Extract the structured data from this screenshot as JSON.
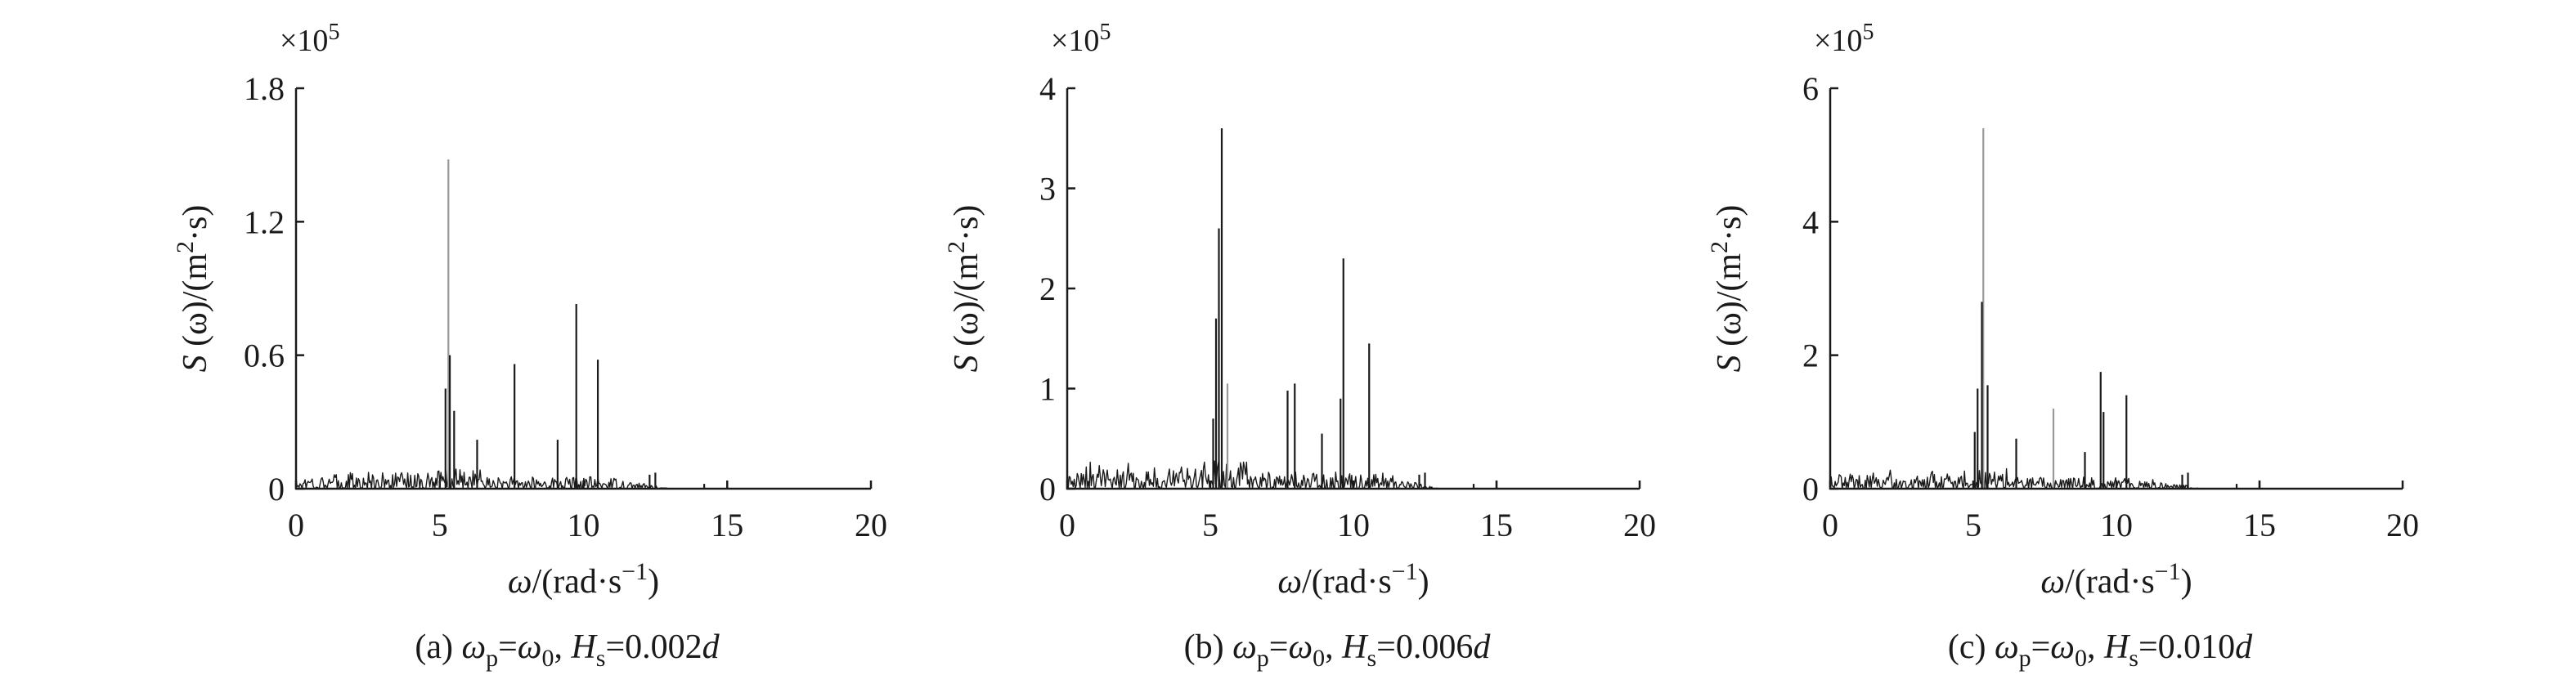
{
  "chart_data": [
    {
      "type": "line",
      "caption": {
        "prefix": "(a) ",
        "omega_p": "ω",
        "sub_p": "p",
        "eq": "=",
        "omega_0": "ω",
        "sub_0": "0",
        "sep": ", ",
        "H": "H",
        "sub_s": "s",
        "eq2": "=0.002",
        "d": "d"
      },
      "xlabel": {
        "omega": "ω",
        "rest": "/(rad·s",
        "sup": "−1",
        "close": ")"
      },
      "ylabel": {
        "S": "S",
        "mid": " (ω)/(m",
        "sup": "2",
        "end": "·s)"
      },
      "multiplier": {
        "text": "×10",
        "exp": "5"
      },
      "xlim": [
        0,
        20
      ],
      "ylim": [
        0,
        1.8
      ],
      "xticks": [
        "0",
        "5",
        "10",
        "15",
        "20"
      ],
      "yticks": [
        "0",
        "0.6",
        "1.2",
        "1.8"
      ],
      "ytick_values": [
        0,
        0.6,
        1.2,
        1.8
      ],
      "noise_level": 0.09,
      "peaks": [
        {
          "x": 5.3,
          "y": 1.48,
          "color": "#999999"
        },
        {
          "x": 5.35,
          "y": 0.6,
          "color": "#1a1a1a"
        },
        {
          "x": 5.2,
          "y": 0.45,
          "color": "#1a1a1a"
        },
        {
          "x": 5.5,
          "y": 0.35,
          "color": "#1a1a1a"
        },
        {
          "x": 6.3,
          "y": 0.22,
          "color": "#1a1a1a"
        },
        {
          "x": 7.6,
          "y": 0.56,
          "color": "#1a1a1a"
        },
        {
          "x": 9.1,
          "y": 0.22,
          "color": "#1a1a1a"
        },
        {
          "x": 9.75,
          "y": 0.83,
          "color": "#1a1a1a"
        },
        {
          "x": 10.5,
          "y": 0.58,
          "color": "#1a1a1a"
        }
      ]
    },
    {
      "type": "line",
      "caption": {
        "prefix": "(b) ",
        "omega_p": "ω",
        "sub_p": "p",
        "eq": "=",
        "omega_0": "ω",
        "sub_0": "0",
        "sep": ", ",
        "H": "H",
        "sub_s": "s",
        "eq2": "=0.006",
        "d": "d"
      },
      "xlabel": {
        "omega": "ω",
        "rest": "/(rad·s",
        "sup": "−1",
        "close": ")"
      },
      "ylabel": {
        "S": "S",
        "mid": " (ω)/(m",
        "sup": "2",
        "end": "·s)"
      },
      "multiplier": {
        "text": "×10",
        "exp": "5"
      },
      "xlim": [
        0,
        20
      ],
      "ylim": [
        0,
        4
      ],
      "xticks": [
        "0",
        "5",
        "10",
        "15",
        "20"
      ],
      "yticks": [
        "0",
        "1",
        "2",
        "3",
        "4"
      ],
      "ytick_values": [
        0,
        1,
        2,
        3,
        4
      ],
      "noise_level": 0.28,
      "peaks": [
        {
          "x": 5.4,
          "y": 3.6,
          "color": "#1a1a1a"
        },
        {
          "x": 5.3,
          "y": 2.6,
          "color": "#1a1a1a"
        },
        {
          "x": 5.2,
          "y": 1.7,
          "color": "#1a1a1a"
        },
        {
          "x": 5.6,
          "y": 1.05,
          "color": "#999999"
        },
        {
          "x": 5.1,
          "y": 0.7,
          "color": "#1a1a1a"
        },
        {
          "x": 7.7,
          "y": 0.98,
          "color": "#1a1a1a"
        },
        {
          "x": 7.95,
          "y": 1.05,
          "color": "#1a1a1a"
        },
        {
          "x": 8.9,
          "y": 0.55,
          "color": "#1a1a1a"
        },
        {
          "x": 9.65,
          "y": 2.3,
          "color": "#1a1a1a"
        },
        {
          "x": 9.55,
          "y": 0.9,
          "color": "#1a1a1a"
        },
        {
          "x": 10.55,
          "y": 1.45,
          "color": "#1a1a1a"
        }
      ]
    },
    {
      "type": "line",
      "caption": {
        "prefix": "(c) ",
        "omega_p": "ω",
        "sub_p": "p",
        "eq": "=",
        "omega_0": "ω",
        "sub_0": "0",
        "sep": ", ",
        "H": "H",
        "sub_s": "s",
        "eq2": "=0.010",
        "d": "d"
      },
      "xlabel": {
        "omega": "ω",
        "rest": "/(rad·s",
        "sup": "−1",
        "close": ")"
      },
      "ylabel": {
        "S": "S",
        "mid": " (ω)/(m",
        "sup": "2",
        "end": "·s)"
      },
      "multiplier": {
        "text": "×10",
        "exp": "5"
      },
      "xlim": [
        0,
        20
      ],
      "ylim": [
        0,
        6
      ],
      "xticks": [
        "0",
        "5",
        "10",
        "15",
        "20"
      ],
      "yticks": [
        "0",
        "2",
        "4",
        "6"
      ],
      "ytick_values": [
        0,
        2,
        4,
        6
      ],
      "noise_level": 0.3,
      "peaks": [
        {
          "x": 5.35,
          "y": 5.4,
          "color": "#999999"
        },
        {
          "x": 5.3,
          "y": 2.8,
          "color": "#1a1a1a"
        },
        {
          "x": 5.15,
          "y": 1.5,
          "color": "#1a1a1a"
        },
        {
          "x": 5.5,
          "y": 1.55,
          "color": "#1a1a1a"
        },
        {
          "x": 5.05,
          "y": 0.85,
          "color": "#1a1a1a"
        },
        {
          "x": 6.5,
          "y": 0.75,
          "color": "#1a1a1a"
        },
        {
          "x": 7.8,
          "y": 1.2,
          "color": "#999999"
        },
        {
          "x": 8.9,
          "y": 0.55,
          "color": "#1a1a1a"
        },
        {
          "x": 9.45,
          "y": 1.75,
          "color": "#1a1a1a"
        },
        {
          "x": 9.55,
          "y": 1.15,
          "color": "#1a1a1a"
        },
        {
          "x": 10.35,
          "y": 1.4,
          "color": "#1a1a1a"
        }
      ]
    }
  ]
}
